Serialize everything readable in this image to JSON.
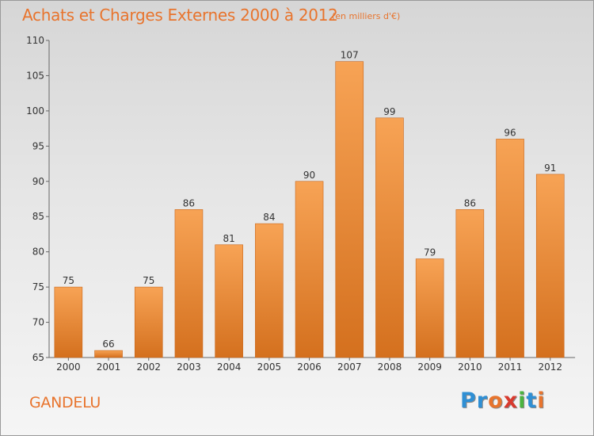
{
  "title": "Achats et Charges Externes 2000 à 2012",
  "subtitle": "(en milliers d'€)",
  "commune": "GANDELU",
  "logo": {
    "letters": [
      "P",
      "r",
      "o",
      "x",
      "i",
      "t",
      "i"
    ],
    "colors": [
      "#2f8fd4",
      "#2f8fd4",
      "#e8742d",
      "#d83a2e",
      "#4bb33f",
      "#2f8fd4",
      "#e8742d"
    ]
  },
  "chart_data": {
    "type": "bar",
    "title": "Achats et Charges Externes 2000 à 2012",
    "subtitle": "(en milliers d'€)",
    "categories": [
      "2000",
      "2001",
      "2002",
      "2003",
      "2004",
      "2005",
      "2006",
      "2007",
      "2008",
      "2009",
      "2010",
      "2011",
      "2012"
    ],
    "values": [
      75,
      66,
      75,
      86,
      81,
      84,
      90,
      107,
      99,
      79,
      86,
      96,
      91
    ],
    "ylim": [
      65,
      110
    ],
    "yticks": [
      65,
      70,
      75,
      80,
      85,
      90,
      95,
      100,
      105,
      110
    ],
    "xlabel": "",
    "ylabel": "",
    "grid": false,
    "bar_color_top": "#f7a355",
    "bar_color_bottom": "#d4701e"
  }
}
